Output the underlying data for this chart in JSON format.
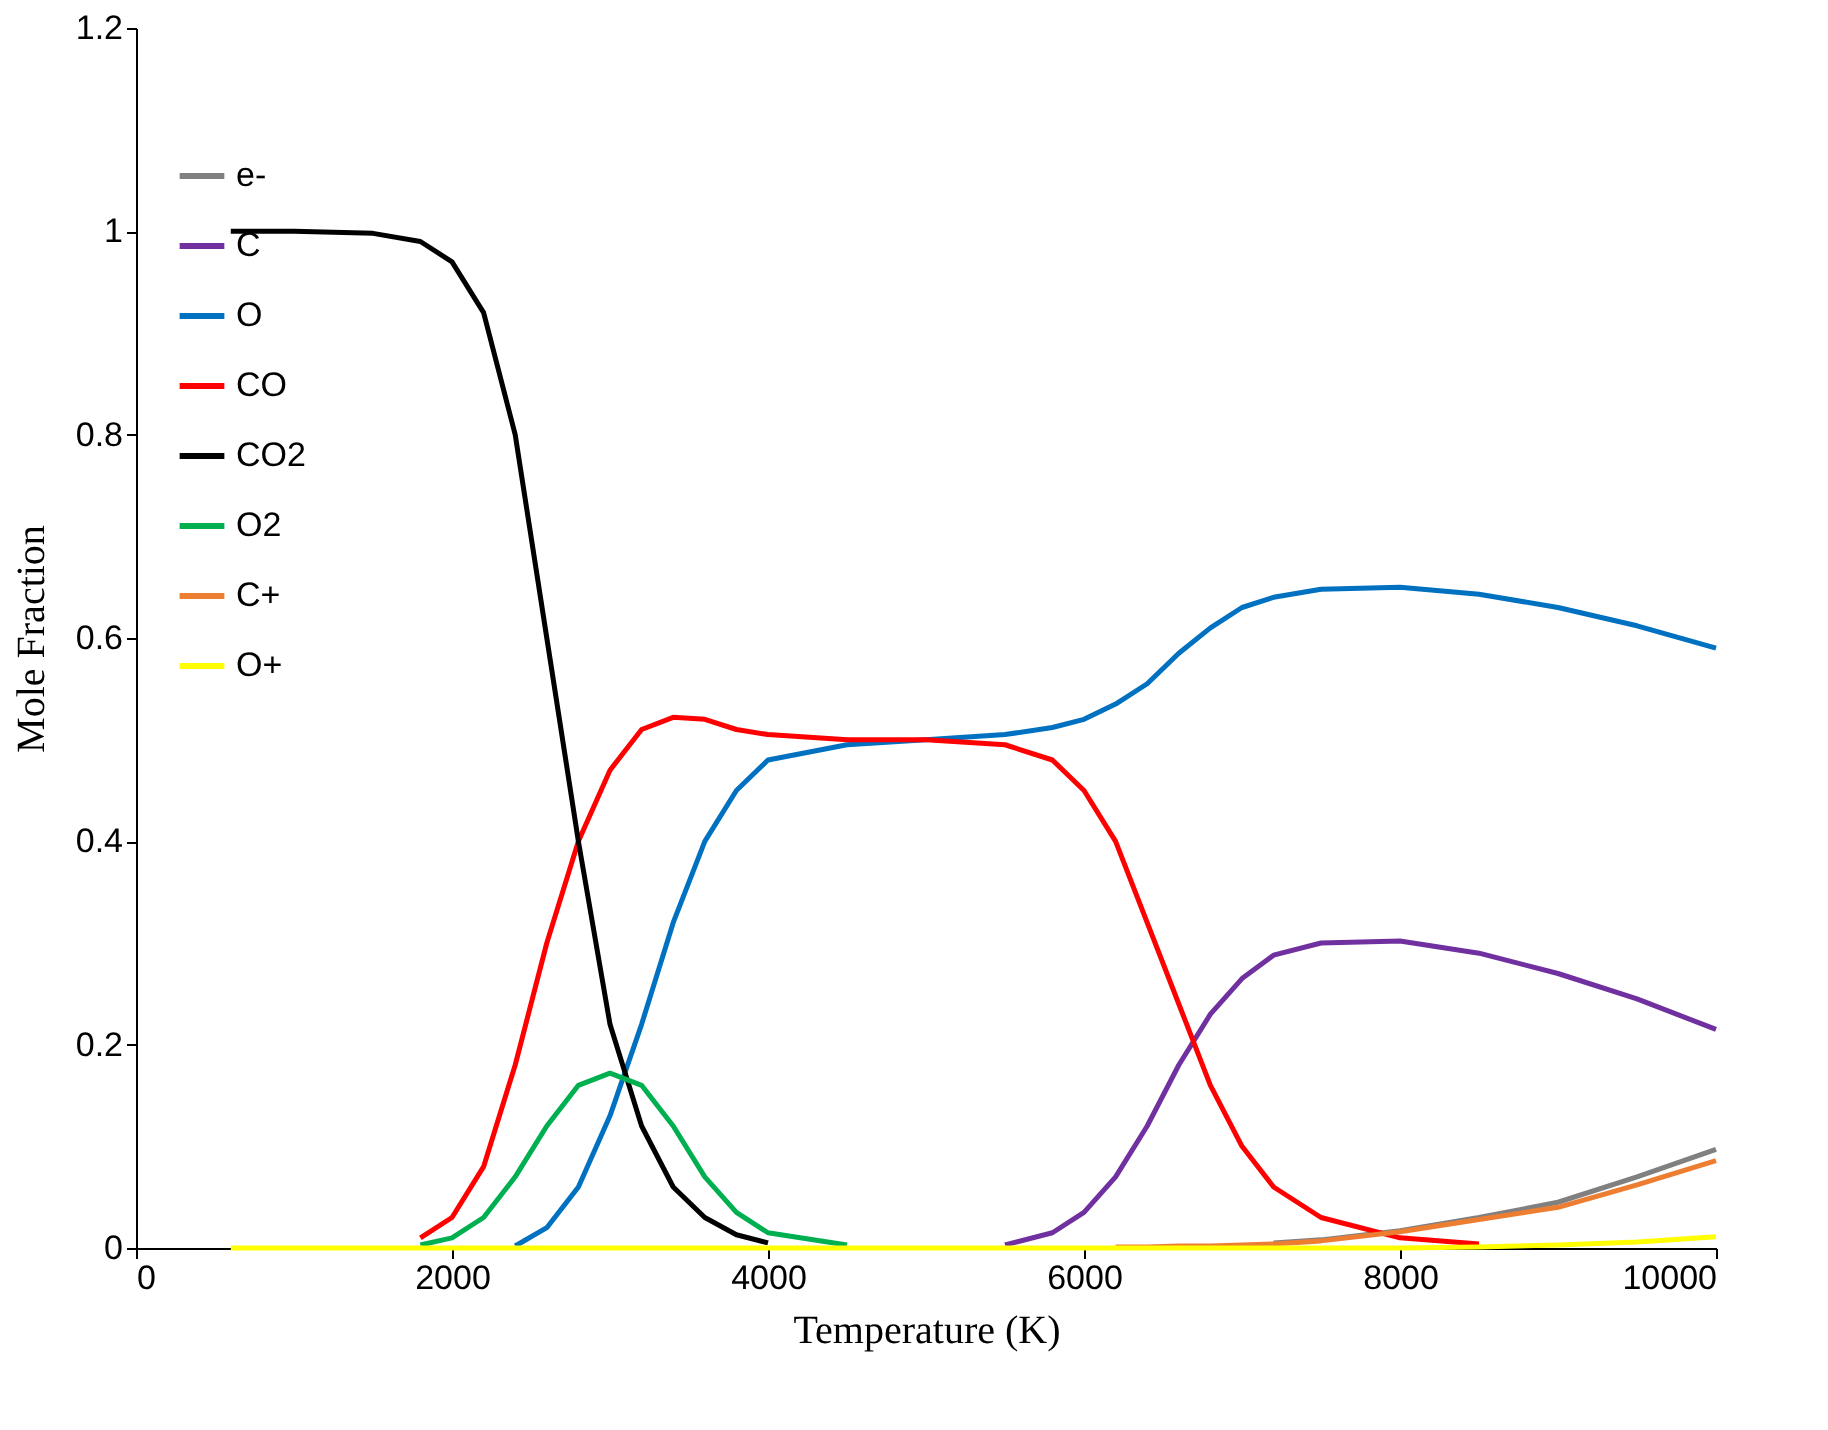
{
  "chart_data": {
    "type": "line",
    "xlabel": "Temperature (K)",
    "ylabel": "Mole Fraction",
    "xlim": [
      0,
      10000
    ],
    "xticks": [
      0,
      2000,
      4000,
      6000,
      8000,
      10000
    ],
    "ylim": [
      0,
      1.2
    ],
    "yticks": [
      0,
      0.2,
      0.4,
      0.6,
      0.8,
      1,
      1.2
    ],
    "x": [
      600,
      1000,
      1500,
      1800,
      2000,
      2200,
      2400,
      2600,
      2800,
      3000,
      3200,
      3400,
      3600,
      3800,
      4000,
      4500,
      5000,
      5500,
      5800,
      6000,
      6200,
      6400,
      6600,
      6800,
      7000,
      7200,
      7500,
      8000,
      8500,
      9000,
      9500,
      10000
    ],
    "grid": false,
    "legend": "left",
    "marker": "none",
    "line_style": "solid",
    "series": [
      {
        "name": "e-",
        "color": "#808080",
        "values": [
          null,
          null,
          null,
          null,
          null,
          null,
          null,
          null,
          null,
          null,
          null,
          null,
          null,
          null,
          null,
          null,
          null,
          null,
          null,
          null,
          null,
          null,
          null,
          null,
          null,
          0.005,
          0.008,
          0.017,
          0.03,
          0.045,
          0.07,
          0.097
        ]
      },
      {
        "name": "C",
        "color": "#7030a0",
        "values": [
          null,
          null,
          null,
          null,
          null,
          null,
          null,
          null,
          null,
          null,
          null,
          null,
          null,
          null,
          null,
          null,
          null,
          0.003,
          0.015,
          0.035,
          0.07,
          0.12,
          0.18,
          0.23,
          0.265,
          0.288,
          0.3,
          0.302,
          0.29,
          0.27,
          0.245,
          0.215
        ]
      },
      {
        "name": "O",
        "color": "#0070c0",
        "values": [
          null,
          null,
          null,
          null,
          null,
          null,
          0.002,
          0.02,
          0.06,
          0.13,
          0.22,
          0.32,
          0.4,
          0.45,
          0.48,
          0.495,
          0.5,
          0.505,
          0.512,
          0.52,
          0.535,
          0.555,
          0.585,
          0.61,
          0.63,
          0.64,
          0.648,
          0.65,
          0.643,
          0.63,
          0.612,
          0.59
        ]
      },
      {
        "name": "CO",
        "color": "#ff0000",
        "values": [
          null,
          null,
          null,
          0.01,
          0.03,
          0.08,
          0.18,
          0.3,
          0.4,
          0.47,
          0.51,
          0.522,
          0.52,
          0.51,
          0.505,
          0.5,
          0.5,
          0.495,
          0.48,
          0.45,
          0.4,
          0.32,
          0.24,
          0.16,
          0.1,
          0.06,
          0.03,
          0.01,
          0.004,
          null,
          null,
          null
        ]
      },
      {
        "name": "CO2",
        "color": "#000000",
        "values": [
          1,
          1,
          0.998,
          0.99,
          0.97,
          0.92,
          0.8,
          0.6,
          0.4,
          0.22,
          0.12,
          0.06,
          0.03,
          0.013,
          0.005,
          null,
          null,
          null,
          null,
          null,
          null,
          null,
          null,
          null,
          null,
          null,
          null,
          null,
          null,
          null,
          null,
          null
        ]
      },
      {
        "name": "O2",
        "color": "#00b050",
        "values": [
          null,
          null,
          null,
          0.003,
          0.01,
          0.03,
          0.07,
          0.12,
          0.16,
          0.172,
          0.16,
          0.12,
          0.07,
          0.035,
          0.015,
          0.003,
          null,
          null,
          null,
          null,
          null,
          null,
          null,
          null,
          null,
          null,
          null,
          null,
          null,
          null,
          null,
          null
        ]
      },
      {
        "name": "C+",
        "color": "#ed7d31",
        "values": [
          null,
          null,
          null,
          null,
          null,
          null,
          null,
          null,
          null,
          null,
          null,
          null,
          null,
          null,
          null,
          null,
          null,
          null,
          null,
          null,
          0.001,
          0.001,
          0.002,
          0.002,
          0.003,
          0.004,
          0.007,
          0.016,
          0.028,
          0.04,
          0.062,
          0.086
        ]
      },
      {
        "name": "O+",
        "color": "#ffff00",
        "values": [
          0,
          0,
          0,
          0,
          0,
          0,
          0,
          0,
          0,
          0,
          0,
          0,
          0,
          0,
          0,
          0,
          0,
          0,
          0,
          0,
          0,
          0,
          0,
          0,
          0,
          0,
          0,
          0,
          0.001,
          0.003,
          0.006,
          0.011
        ]
      }
    ]
  }
}
